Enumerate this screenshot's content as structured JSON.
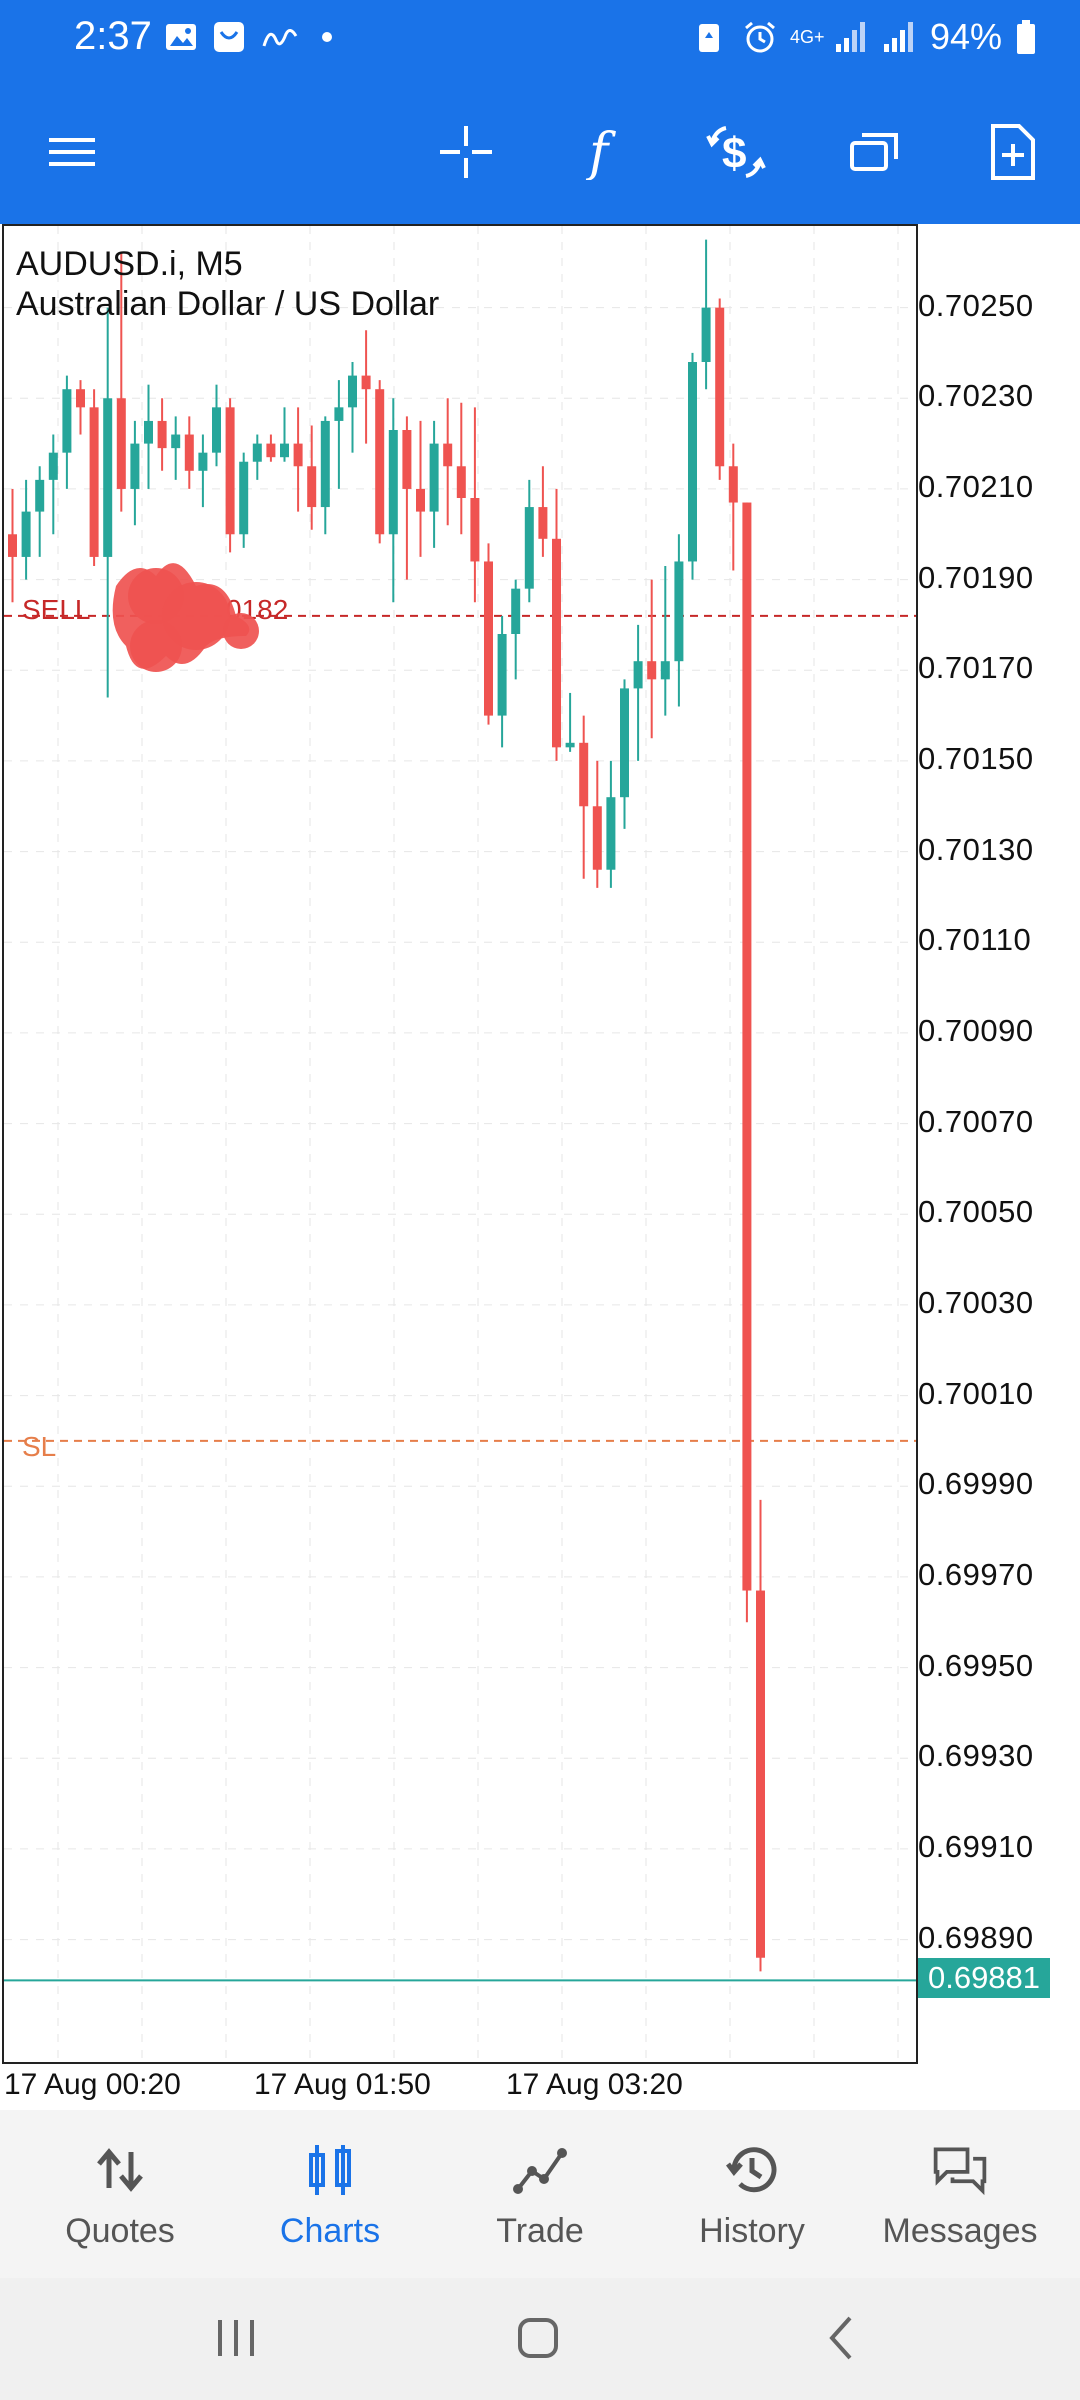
{
  "status_bar": {
    "time": "2:37",
    "battery": "94%",
    "network": "4G+",
    "left_icons": [
      "image-icon",
      "shopping-icon",
      "signature-icon",
      "dot-icon"
    ],
    "right_icons": [
      "battery-saver-icon",
      "alarm-icon",
      "network-icon",
      "signal-icon",
      "signal-icon-2",
      "battery-icon"
    ]
  },
  "toolbar": {
    "menu_icon": "menu-icon",
    "buttons": [
      "crosshair-icon",
      "indicators-icon",
      "trade-icon",
      "windows-icon",
      "new-order-icon"
    ]
  },
  "chart": {
    "symbol_line": "AUDUSD.i, M5",
    "description": "Australian Dollar / US Dollar",
    "sell_label": "SELL",
    "sell_price_suffix": "0182",
    "sl_label": "SL",
    "current_price": "0.69881",
    "colors": {
      "bull": "#26a69a",
      "bear": "#ef5350",
      "sell_line": "#c62828",
      "sl_line": "#e67e4a",
      "current_line": "#26a69a",
      "accent": "#1a73e8"
    }
  },
  "chart_data": {
    "type": "candlestick",
    "symbol": "AUDUSD.i",
    "timeframe": "M5",
    "price_ticks": [
      "0.70250",
      "0.70230",
      "0.70210",
      "0.70190",
      "0.70170",
      "0.70150",
      "0.70130",
      "0.70110",
      "0.70090",
      "0.70070",
      "0.70050",
      "0.70030",
      "0.70010",
      "0.69990",
      "0.69970",
      "0.69950",
      "0.69930",
      "0.69910",
      "0.69890"
    ],
    "time_ticks": [
      "17 Aug 00:20",
      "17 Aug 01:50",
      "17 Aug 03:20"
    ],
    "ylim": [
      0.69863,
      0.70268
    ],
    "sell_level": 0.70182,
    "sl_level": 0.7,
    "current_price": 0.69881,
    "candles": [
      [
        0.702,
        0.7021,
        0.70185,
        0.70195
      ],
      [
        0.70195,
        0.70212,
        0.7019,
        0.70205
      ],
      [
        0.70205,
        0.70215,
        0.70195,
        0.70212
      ],
      [
        0.70212,
        0.70222,
        0.702,
        0.70218
      ],
      [
        0.70218,
        0.70235,
        0.7021,
        0.70232
      ],
      [
        0.70232,
        0.70234,
        0.70222,
        0.70228
      ],
      [
        0.70228,
        0.70232,
        0.70193,
        0.70195
      ],
      [
        0.70195,
        0.7025,
        0.70164,
        0.7023
      ],
      [
        0.7023,
        0.70262,
        0.70205,
        0.7021
      ],
      [
        0.7021,
        0.70225,
        0.70202,
        0.7022
      ],
      [
        0.7022,
        0.70233,
        0.7021,
        0.70225
      ],
      [
        0.70225,
        0.7023,
        0.70214,
        0.70219
      ],
      [
        0.70219,
        0.70226,
        0.70212,
        0.70222
      ],
      [
        0.70222,
        0.70226,
        0.7021,
        0.70214
      ],
      [
        0.70214,
        0.70222,
        0.70206,
        0.70218
      ],
      [
        0.70218,
        0.70233,
        0.70215,
        0.70228
      ],
      [
        0.70228,
        0.7023,
        0.70196,
        0.702
      ],
      [
        0.702,
        0.70218,
        0.70197,
        0.70216
      ],
      [
        0.70216,
        0.70222,
        0.70212,
        0.7022
      ],
      [
        0.7022,
        0.70222,
        0.70216,
        0.70217
      ],
      [
        0.70217,
        0.70228,
        0.70216,
        0.7022
      ],
      [
        0.7022,
        0.70228,
        0.70205,
        0.70215
      ],
      [
        0.70215,
        0.70224,
        0.70201,
        0.70206
      ],
      [
        0.70206,
        0.70226,
        0.702,
        0.70225
      ],
      [
        0.70225,
        0.70234,
        0.7021,
        0.70228
      ],
      [
        0.70228,
        0.70238,
        0.70218,
        0.70235
      ],
      [
        0.70235,
        0.70245,
        0.7022,
        0.70232
      ],
      [
        0.70232,
        0.70234,
        0.70198,
        0.702
      ],
      [
        0.702,
        0.7023,
        0.70185,
        0.70223
      ],
      [
        0.70223,
        0.70226,
        0.7019,
        0.7021
      ],
      [
        0.7021,
        0.70225,
        0.70195,
        0.70205
      ],
      [
        0.70205,
        0.70225,
        0.70197,
        0.7022
      ],
      [
        0.7022,
        0.7023,
        0.70202,
        0.70215
      ],
      [
        0.70215,
        0.70229,
        0.702,
        0.70208
      ],
      [
        0.70208,
        0.70228,
        0.70185,
        0.70194
      ],
      [
        0.70194,
        0.70198,
        0.70158,
        0.7016
      ],
      [
        0.7016,
        0.70182,
        0.70153,
        0.70178
      ],
      [
        0.70178,
        0.7019,
        0.70168,
        0.70188
      ],
      [
        0.70188,
        0.70212,
        0.70185,
        0.70206
      ],
      [
        0.70206,
        0.70215,
        0.70195,
        0.70199
      ],
      [
        0.70199,
        0.7021,
        0.7015,
        0.70153
      ],
      [
        0.70153,
        0.70165,
        0.70152,
        0.70154
      ],
      [
        0.70154,
        0.7016,
        0.70124,
        0.7014
      ],
      [
        0.7014,
        0.7015,
        0.70122,
        0.70126
      ],
      [
        0.70126,
        0.7015,
        0.70122,
        0.70142
      ],
      [
        0.70142,
        0.70168,
        0.70135,
        0.70166
      ],
      [
        0.70166,
        0.7018,
        0.7015,
        0.70172
      ],
      [
        0.70172,
        0.7019,
        0.70155,
        0.70168
      ],
      [
        0.70168,
        0.70193,
        0.7016,
        0.70172
      ],
      [
        0.70172,
        0.702,
        0.70162,
        0.70194
      ],
      [
        0.70194,
        0.7024,
        0.7019,
        0.70238
      ],
      [
        0.70238,
        0.70265,
        0.70232,
        0.7025
      ],
      [
        0.7025,
        0.70252,
        0.70212,
        0.70215
      ],
      [
        0.70215,
        0.7022,
        0.70192,
        0.70207
      ],
      [
        0.70207,
        0.70207,
        0.6996,
        0.69967
      ],
      [
        0.69967,
        0.69987,
        0.69883,
        0.69886
      ]
    ]
  },
  "bottom_nav": [
    {
      "label": "Quotes",
      "icon": "quotes-icon",
      "active": false
    },
    {
      "label": "Charts",
      "icon": "charts-icon",
      "active": true
    },
    {
      "label": "Trade",
      "icon": "trade-chart-icon",
      "active": false
    },
    {
      "label": "History",
      "icon": "history-icon",
      "active": false
    },
    {
      "label": "Messages",
      "icon": "messages-icon",
      "active": false
    }
  ]
}
